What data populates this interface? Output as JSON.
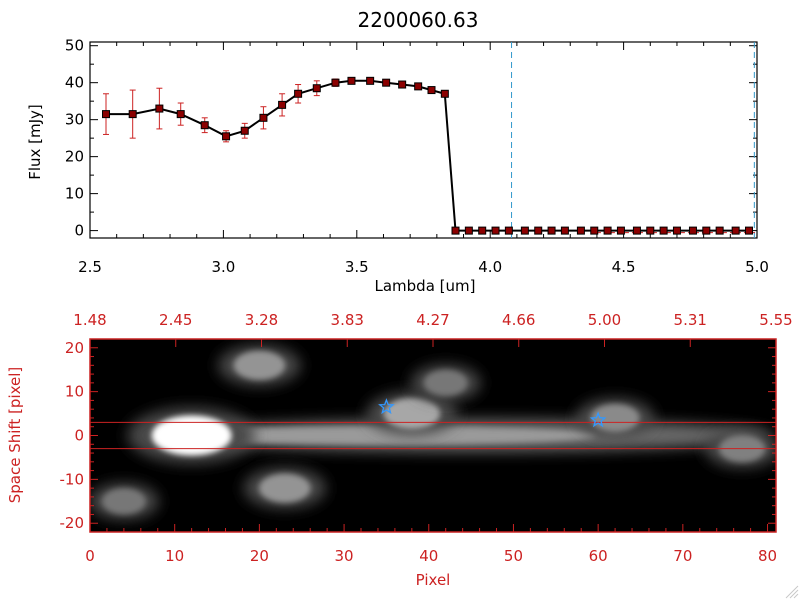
{
  "chart_data": [
    {
      "type": "line",
      "title": "2200060.63",
      "xlabel": "Lambda [um]",
      "ylabel": "Flux [mJy]",
      "xlim": [
        2.5,
        5.0
      ],
      "ylim": [
        -2,
        51
      ],
      "xticks": [
        "2.5",
        "3.0",
        "3.5",
        "4.0",
        "4.5",
        "5.0"
      ],
      "yticks": [
        "0",
        "10",
        "20",
        "30",
        "40",
        "50"
      ],
      "x": [
        2.56,
        2.66,
        2.76,
        2.84,
        2.93,
        3.01,
        3.08,
        3.15,
        3.22,
        3.28,
        3.35,
        3.42,
        3.48,
        3.55,
        3.61,
        3.67,
        3.73,
        3.78,
        3.83,
        3.87,
        3.92,
        3.97,
        4.02,
        4.07,
        4.13,
        4.18,
        4.23,
        4.28,
        4.34,
        4.39,
        4.44,
        4.49,
        4.55,
        4.6,
        4.65,
        4.7,
        4.76,
        4.81,
        4.86,
        4.92,
        4.97
      ],
      "series": [
        {
          "color": "#000000",
          "marker_color": "#8b0000",
          "values": [
            31.5,
            31.5,
            33,
            31.5,
            28.5,
            25.5,
            27,
            30.5,
            34,
            37,
            38.5,
            40,
            40.5,
            40.5,
            40,
            39.5,
            39,
            38,
            37,
            0,
            0,
            0,
            0,
            0,
            0,
            0,
            0,
            0,
            0,
            0,
            0,
            0,
            0,
            0,
            0,
            0,
            0,
            0,
            0,
            0,
            0
          ],
          "errors": [
            5.5,
            6.5,
            5.5,
            3,
            2,
            1.5,
            2,
            3,
            3,
            2.5,
            2,
            1,
            0.8,
            0.5,
            0.5,
            0.5,
            0.5,
            0.5,
            0.5,
            0,
            0,
            0,
            0,
            0,
            0,
            0,
            0,
            0,
            0,
            0,
            0,
            0,
            0,
            0,
            0,
            0,
            0,
            0,
            0,
            0,
            0
          ]
        }
      ],
      "vlines": [
        {
          "x": 4.08,
          "color": "#3399cc",
          "style": "dashed"
        },
        {
          "x": 4.99,
          "color": "#3399cc",
          "style": "dashed"
        }
      ]
    },
    {
      "type": "heatmap",
      "xlabel": "Pixel",
      "ylabel": "Space Shift [pixel]",
      "xlim": [
        0,
        81
      ],
      "ylim": [
        -22,
        22
      ],
      "xticks": [
        "0",
        "10",
        "20",
        "30",
        "40",
        "50",
        "60",
        "70",
        "80"
      ],
      "yticks": [
        "-20",
        "-10",
        "0",
        "10",
        "20"
      ],
      "top_axis_labels": [
        "1.48",
        "2.45",
        "3.28",
        "3.83",
        "4.27",
        "4.66",
        "5.00",
        "5.31",
        "5.55"
      ],
      "axis_color": "#cc2222",
      "background_color": "#000000",
      "hlines": [
        {
          "y": 3,
          "color": "#cc2222"
        },
        {
          "y": -3,
          "color": "#cc2222"
        }
      ],
      "star_markers": [
        {
          "x": 35,
          "y": 6.5,
          "color": "#3399ff"
        },
        {
          "x": 60,
          "y": 3.5,
          "color": "#3399ff"
        }
      ],
      "sources": [
        {
          "x": 12,
          "y": 0,
          "intensity": 1.0
        },
        {
          "x": 38,
          "y": 5,
          "intensity": 0.55
        },
        {
          "x": 62,
          "y": 4,
          "intensity": 0.4
        },
        {
          "x": 20,
          "y": 16,
          "intensity": 0.45
        },
        {
          "x": 23,
          "y": -12,
          "intensity": 0.45
        },
        {
          "x": 4,
          "y": -15,
          "intensity": 0.3
        },
        {
          "x": 77,
          "y": -3,
          "intensity": 0.35
        },
        {
          "x": 42,
          "y": 12,
          "intensity": 0.3
        }
      ]
    }
  ]
}
